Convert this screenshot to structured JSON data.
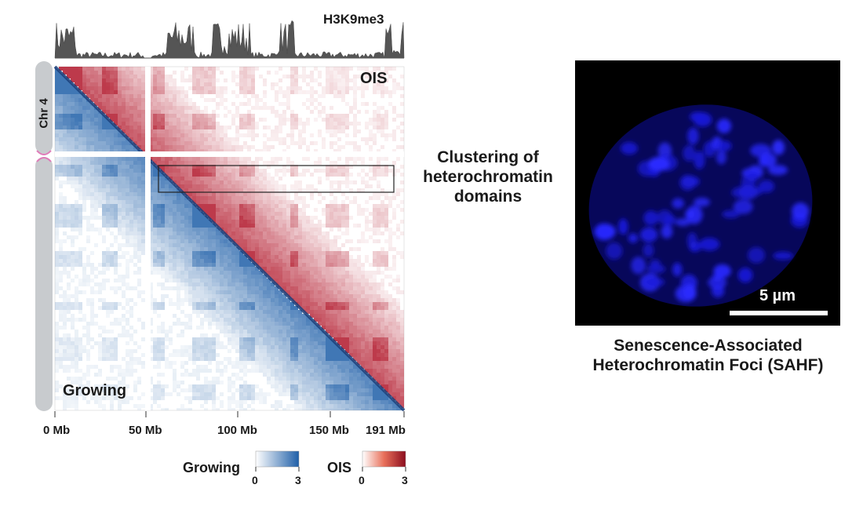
{
  "track": {
    "label": "H3K9me3"
  },
  "chromosome": {
    "label": "Chr 4"
  },
  "hic_map": {
    "upper_label": "OIS",
    "lower_label": "Growing",
    "axis_ticks": [
      "0 Mb",
      "50 Mb",
      "100 Mb",
      "150 Mb",
      "191 Mb"
    ],
    "colors": {
      "growing": "#1f5fa8",
      "ois": "#b2182b"
    }
  },
  "annotation": {
    "line1": "Clustering of",
    "line2": "heterochromatin",
    "line3": "domains"
  },
  "microscopy": {
    "scale_bar_label": "5 µm",
    "caption_line1": "Senescence-Associated",
    "caption_line2": "Heterochromatin Foci (SAHF)"
  },
  "legend": {
    "growing_label": "Growing",
    "growing_min": "0",
    "growing_max": "3",
    "ois_label": "OIS",
    "ois_min": "0",
    "ois_max": "3"
  }
}
